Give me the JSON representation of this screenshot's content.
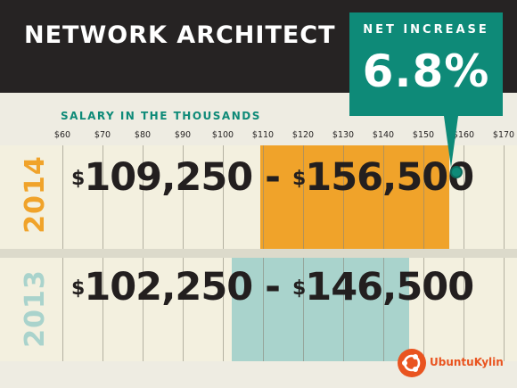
{
  "title": "NETWORK ARCHITECT",
  "callout": {
    "label": "NET INCREASE",
    "value": "6.8%"
  },
  "watermark": "UbuntuKylin",
  "colors": {
    "banner": "#262323",
    "callout": "#0e8a78",
    "subtitle": "#0e8a78",
    "bar_2014": "#f0a32a",
    "bar_2013": "#a9d3cc",
    "year_2014": "#f0a32a",
    "year_2013": "#a9d3cc",
    "logo": "#e95420"
  },
  "chart_data": {
    "type": "bar",
    "subtitle": "SALARY IN THE THOUSANDS",
    "x_ticks": [
      "$60",
      "$70",
      "$80",
      "$90",
      "$100",
      "$110",
      "$120",
      "$130",
      "$140",
      "$150",
      "$160",
      "$170"
    ],
    "x_tick_values": [
      60,
      70,
      80,
      90,
      100,
      110,
      120,
      130,
      140,
      150,
      160,
      170
    ],
    "xlim": [
      60,
      170
    ],
    "grid": true,
    "series": [
      {
        "name": "2014",
        "low": 109.25,
        "high": 156.5,
        "low_text": "109,250",
        "high_text": "156,500",
        "currency": "$",
        "separator": "-"
      },
      {
        "name": "2013",
        "low": 102.25,
        "high": 146.5,
        "low_text": "102,250",
        "high_text": "146,500",
        "currency": "$",
        "separator": "-"
      }
    ]
  }
}
